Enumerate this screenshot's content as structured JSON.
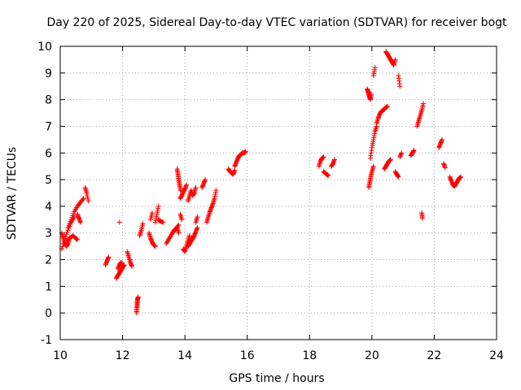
{
  "chart_data": {
    "type": "scatter",
    "title": "Day 220 of 2025, Sidereal Day-to-day VTEC variation (SDTVAR) for receiver bogt",
    "xlabel": "GPS time / hours",
    "ylabel": "SDTVAR / TECUs",
    "xlim": [
      10,
      24
    ],
    "ylim": [
      -1,
      10
    ],
    "xticks": [
      10,
      12,
      14,
      16,
      18,
      20,
      22,
      24
    ],
    "yticks": [
      -1,
      0,
      1,
      2,
      3,
      4,
      5,
      6,
      7,
      8,
      9,
      10
    ],
    "grid": true,
    "marker": "+",
    "marker_color": "#ff0000",
    "segments": [
      {
        "x": [
          10.05,
          10.15,
          10.25,
          10.35,
          10.45
        ],
        "y": [
          2.4,
          2.8,
          3.1,
          3.4,
          3.6
        ]
      },
      {
        "x": [
          10.05,
          10.1,
          10.15,
          10.2,
          10.25,
          10.3
        ],
        "y": [
          3.0,
          2.8,
          2.6,
          2.5,
          2.6,
          2.8
        ]
      },
      {
        "x": [
          10.2,
          10.3,
          10.4,
          10.5,
          10.55
        ],
        "y": [
          2.7,
          2.8,
          2.9,
          2.8,
          2.75
        ]
      },
      {
        "x": [
          10.25,
          10.35,
          10.45,
          10.55,
          10.65,
          10.75
        ],
        "y": [
          3.2,
          3.5,
          3.8,
          4.0,
          4.15,
          4.3
        ]
      },
      {
        "x": [
          10.55,
          10.6,
          10.65
        ],
        "y": [
          3.7,
          3.55,
          3.4
        ]
      },
      {
        "x": [
          10.8,
          10.85,
          10.9
        ],
        "y": [
          4.7,
          4.5,
          4.2
        ]
      },
      {
        "x": [
          11.45,
          11.5,
          11.55
        ],
        "y": [
          1.8,
          1.95,
          2.1
        ]
      },
      {
        "x": [
          11.8,
          11.85,
          11.9,
          11.95,
          12.0,
          12.05
        ],
        "y": [
          1.3,
          1.4,
          1.5,
          1.6,
          1.7,
          1.8
        ]
      },
      {
        "x": [
          11.85,
          11.9,
          11.95,
          12.0
        ],
        "y": [
          1.65,
          1.8,
          1.9,
          1.75
        ]
      },
      {
        "x": [
          11.9
        ],
        "y": [
          3.4
        ]
      },
      {
        "x": [
          12.15,
          12.2,
          12.25,
          12.3
        ],
        "y": [
          2.3,
          2.1,
          1.9,
          1.75
        ]
      },
      {
        "x": [
          12.45,
          12.46,
          12.47,
          12.48,
          12.5
        ],
        "y": [
          0.0,
          0.2,
          0.35,
          0.5,
          0.6
        ]
      },
      {
        "x": [
          12.55,
          12.6,
          12.65
        ],
        "y": [
          2.9,
          3.1,
          3.35
        ]
      },
      {
        "x": [
          12.85,
          12.9,
          12.95,
          13.0,
          13.05
        ],
        "y": [
          3.0,
          2.8,
          2.65,
          2.55,
          2.5
        ]
      },
      {
        "x": [
          12.9,
          12.95
        ],
        "y": [
          3.5,
          3.75
        ]
      },
      {
        "x": [
          13.05,
          13.1,
          13.15
        ],
        "y": [
          3.4,
          3.7,
          4.0
        ]
      },
      {
        "x": [
          13.15,
          13.2,
          13.3
        ],
        "y": [
          3.5,
          3.45,
          3.4
        ]
      },
      {
        "x": [
          13.4,
          13.5,
          13.6,
          13.7,
          13.8
        ],
        "y": [
          2.6,
          2.8,
          3.0,
          3.15,
          3.3
        ]
      },
      {
        "x": [
          13.45,
          13.55,
          13.65,
          13.75,
          13.8
        ],
        "y": [
          2.7,
          2.9,
          3.1,
          3.2,
          3.0
        ]
      },
      {
        "x": [
          13.75,
          13.78,
          13.8,
          13.83,
          13.86
        ],
        "y": [
          5.4,
          5.2,
          5.0,
          4.8,
          4.6
        ]
      },
      {
        "x": [
          13.85,
          13.9,
          13.95,
          14.0,
          14.05
        ],
        "y": [
          4.3,
          4.4,
          4.55,
          4.65,
          4.8
        ]
      },
      {
        "x": [
          13.85,
          13.9
        ],
        "y": [
          3.7,
          3.5
        ]
      },
      {
        "x": [
          13.95,
          14.0,
          14.05,
          14.1,
          14.15
        ],
        "y": [
          2.4,
          2.3,
          2.5,
          2.7,
          2.9
        ]
      },
      {
        "x": [
          14.1,
          14.15,
          14.2,
          14.25,
          14.3,
          14.35,
          14.4
        ],
        "y": [
          2.5,
          2.6,
          2.7,
          2.8,
          2.9,
          3.05,
          3.2
        ]
      },
      {
        "x": [
          14.1,
          14.15,
          14.2,
          14.25,
          14.3,
          14.35
        ],
        "y": [
          4.2,
          4.4,
          4.6,
          4.4,
          4.5,
          4.7
        ]
      },
      {
        "x": [
          14.35,
          14.4
        ],
        "y": [
          3.4,
          3.6
        ]
      },
      {
        "x": [
          14.55,
          14.6,
          14.65
        ],
        "y": [
          4.7,
          4.85,
          5.0
        ]
      },
      {
        "x": [
          14.7,
          14.75,
          14.8,
          14.85,
          14.9,
          14.95,
          15.0
        ],
        "y": [
          3.4,
          3.6,
          3.8,
          3.95,
          4.1,
          4.3,
          4.6
        ]
      },
      {
        "x": [
          15.4,
          15.45,
          15.5,
          15.55,
          15.6
        ],
        "y": [
          5.4,
          5.3,
          5.25,
          5.2,
          5.35
        ]
      },
      {
        "x": [
          15.6,
          15.65,
          15.7,
          15.75,
          15.8,
          15.85,
          15.9,
          15.95
        ],
        "y": [
          5.5,
          5.65,
          5.8,
          5.9,
          5.95,
          6.0,
          6.0,
          6.05
        ]
      },
      {
        "x": [
          18.3,
          18.35,
          18.4,
          18.45
        ],
        "y": [
          5.5,
          5.7,
          5.8,
          5.85
        ]
      },
      {
        "x": [
          18.45,
          18.5,
          18.55,
          18.6
        ],
        "y": [
          5.3,
          5.25,
          5.2,
          5.15
        ]
      },
      {
        "x": [
          18.7,
          18.75,
          18.8
        ],
        "y": [
          5.5,
          5.6,
          5.75
        ]
      },
      {
        "x": [
          19.85,
          19.88,
          19.9,
          19.93,
          19.95,
          19.98
        ],
        "y": [
          8.4,
          8.3,
          8.2,
          8.1,
          8.0,
          8.2
        ]
      },
      {
        "x": [
          19.9,
          19.93,
          19.96,
          20.0,
          20.05
        ],
        "y": [
          4.7,
          4.9,
          5.1,
          5.3,
          5.5
        ]
      },
      {
        "x": [
          19.95,
          20.0,
          20.05,
          20.1,
          20.15
        ],
        "y": [
          5.8,
          6.2,
          6.5,
          6.8,
          7.0
        ]
      },
      {
        "x": [
          20.05,
          20.1
        ],
        "y": [
          8.9,
          9.2
        ]
      },
      {
        "x": [
          20.15,
          20.2,
          20.25,
          20.3,
          20.35,
          20.4,
          20.45,
          20.5
        ],
        "y": [
          7.1,
          7.3,
          7.45,
          7.55,
          7.6,
          7.65,
          7.7,
          7.75
        ]
      },
      {
        "x": [
          20.4,
          20.45,
          20.5,
          20.55,
          20.6
        ],
        "y": [
          5.4,
          5.5,
          5.6,
          5.7,
          5.75
        ]
      },
      {
        "x": [
          20.45,
          20.5,
          20.55,
          20.6,
          20.65,
          20.7,
          20.75
        ],
        "y": [
          9.8,
          9.7,
          9.6,
          9.5,
          9.4,
          9.3,
          9.5
        ]
      },
      {
        "x": [
          20.75,
          20.8,
          20.85
        ],
        "y": [
          5.3,
          5.2,
          5.1
        ]
      },
      {
        "x": [
          20.85,
          20.9
        ],
        "y": [
          8.9,
          8.5
        ]
      },
      {
        "x": [
          20.9,
          20.95
        ],
        "y": [
          5.85,
          6.0
        ]
      },
      {
        "x": [
          21.25,
          21.3,
          21.35
        ],
        "y": [
          5.9,
          6.0,
          6.1
        ]
      },
      {
        "x": [
          21.45,
          21.5,
          21.55,
          21.6,
          21.65
        ],
        "y": [
          7.0,
          7.2,
          7.4,
          7.6,
          7.85
        ]
      },
      {
        "x": [
          21.6,
          21.62
        ],
        "y": [
          3.75,
          3.55
        ]
      },
      {
        "x": [
          22.15,
          22.2,
          22.25
        ],
        "y": [
          6.2,
          6.35,
          6.5
        ]
      },
      {
        "x": [
          22.3,
          22.35
        ],
        "y": [
          5.6,
          5.45
        ]
      },
      {
        "x": [
          22.5,
          22.55,
          22.6,
          22.65,
          22.7,
          22.75,
          22.8,
          22.85
        ],
        "y": [
          5.1,
          4.95,
          4.8,
          4.75,
          4.85,
          4.95,
          5.05,
          5.1
        ]
      }
    ]
  }
}
